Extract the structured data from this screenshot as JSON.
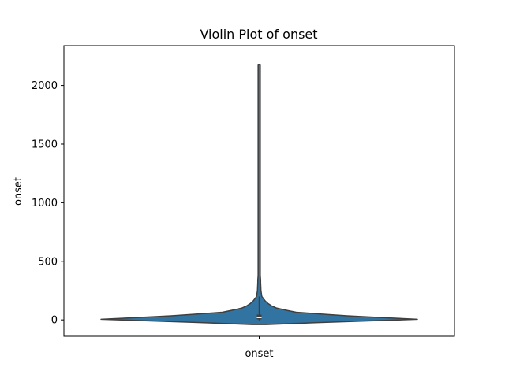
{
  "chart_data": {
    "type": "violin",
    "title": "Violin Plot of onset",
    "xlabel": "",
    "ylabel": "onset",
    "categories": [
      "onset"
    ],
    "ylim": [
      -140,
      2340
    ],
    "yticks": [
      0,
      500,
      1000,
      1500,
      2000
    ],
    "grid": false,
    "colors": {
      "fill": "#3274a1",
      "edge": "#3f3f3f",
      "median": "#ffffff"
    },
    "series": [
      {
        "name": "onset",
        "min": -40,
        "max": 2180,
        "q1": 5,
        "median": 20,
        "q3": 45,
        "whisker_low": -5,
        "whisker_high": 200,
        "density_profile": [
          {
            "y": -40,
            "half_width": 0.04
          },
          {
            "y": -25,
            "half_width": 0.3
          },
          {
            "y": -10,
            "half_width": 0.6
          },
          {
            "y": 5,
            "half_width": 0.9
          },
          {
            "y": 20,
            "half_width": 0.7
          },
          {
            "y": 35,
            "half_width": 0.5
          },
          {
            "y": 50,
            "half_width": 0.35
          },
          {
            "y": 65,
            "half_width": 0.21
          },
          {
            "y": 80,
            "half_width": 0.16
          },
          {
            "y": 100,
            "half_width": 0.1
          },
          {
            "y": 120,
            "half_width": 0.07
          },
          {
            "y": 140,
            "half_width": 0.05
          },
          {
            "y": 160,
            "half_width": 0.035
          },
          {
            "y": 180,
            "half_width": 0.025
          },
          {
            "y": 200,
            "half_width": 0.015
          },
          {
            "y": 250,
            "half_width": 0.01
          },
          {
            "y": 320,
            "half_width": 0.008
          },
          {
            "y": 340,
            "half_width": 0.008
          },
          {
            "y": 380,
            "half_width": 0.006
          },
          {
            "y": 700,
            "half_width": 0.006
          },
          {
            "y": 730,
            "half_width": 0.006
          },
          {
            "y": 1000,
            "half_width": 0.006
          },
          {
            "y": 2180,
            "half_width": 0.006
          }
        ]
      }
    ]
  }
}
